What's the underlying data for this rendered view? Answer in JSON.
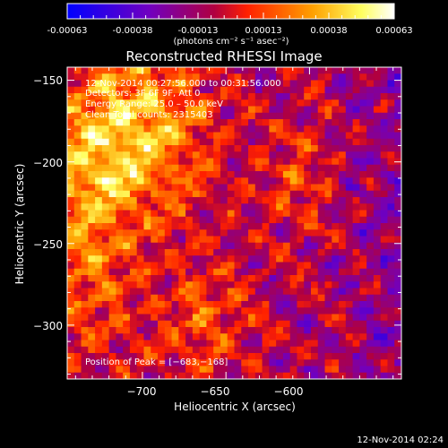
{
  "colorbar": {
    "ticks": [
      "-0.00063",
      "-0.00038",
      "-0.00013",
      "0.00013",
      "0.00038",
      "0.00063"
    ],
    "unit": "(photons cm⁻² s⁻¹ asec⁻²)",
    "colors": [
      "#0000ff",
      "#7000c0",
      "#b00040",
      "#ff2000",
      "#ffa000",
      "#ffff60",
      "#ffffff"
    ]
  },
  "chart_data": {
    "type": "heatmap",
    "title": "Reconstructed RHESSI Image",
    "xlabel": "Heliocentric X (arcsec)",
    "ylabel": "Heliocentric Y (arcsec)",
    "xlim": [
      -745,
      -545
    ],
    "ylim": [
      -333,
      -142
    ],
    "x_ticks": [
      -700,
      -650,
      -600
    ],
    "y_ticks": [
      -150,
      -200,
      -250,
      -300
    ],
    "x_tick_labels": [
      "−700",
      "−650",
      "−600"
    ],
    "y_tick_labels": [
      "−150",
      "−200",
      "−250",
      "−300"
    ],
    "annotations": [
      "12-Nov-2014 00:27:56.000 to 00:31:56.000",
      "Detectors: 3F 6F 9F, Att 0",
      "Energy Range: 25.0 – 50.0 keV",
      "Clean     Total counts: 2315403"
    ],
    "peak_label": "Position of Peak = [−683,−168]",
    "peak": [
      -683,
      -168
    ],
    "value_range": [
      -0.00063,
      0.00063
    ],
    "grid": false
  },
  "footer": {
    "timestamp": "12-Nov-2014 02:24"
  }
}
